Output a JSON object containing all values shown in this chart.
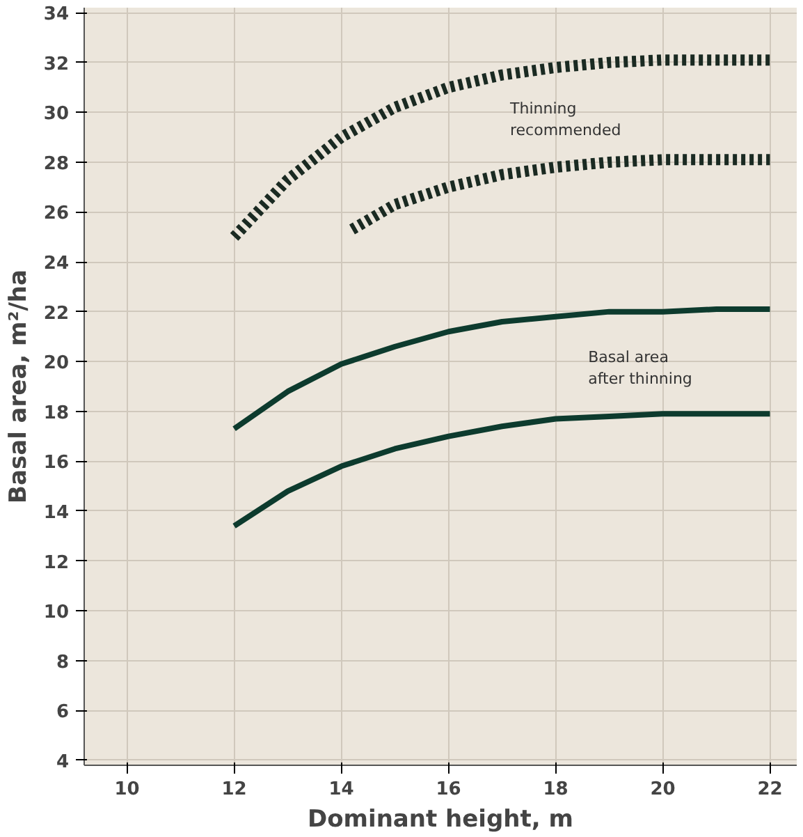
{
  "chart_data": {
    "type": "line",
    "xlabel": "Dominant height, m",
    "ylabel": "Basal area, m²/ha",
    "xlim": [
      9.2,
      22.5
    ],
    "ylim": [
      3.8,
      34.2
    ],
    "xticks": [
      10,
      12,
      14,
      16,
      18,
      20,
      22
    ],
    "yticks": [
      4,
      6,
      8,
      10,
      12,
      14,
      16,
      18,
      20,
      22,
      24,
      26,
      28,
      30,
      32,
      34
    ],
    "grid": true,
    "series": [
      {
        "color": "#1a2a22",
        "line_style": "dotted",
        "x": [
          12,
          13,
          14,
          15,
          16,
          17,
          18,
          19,
          20,
          21,
          22
        ],
        "values": [
          25.0,
          27.3,
          29.0,
          30.2,
          31.0,
          31.5,
          31.8,
          32.0,
          32.1,
          32.1,
          32.1
        ]
      },
      {
        "color": "#1a2a22",
        "line_style": "dotted",
        "x": [
          14.2,
          15,
          16,
          17,
          18,
          19,
          20,
          21,
          22
        ],
        "values": [
          25.3,
          26.3,
          27.0,
          27.5,
          27.8,
          28.0,
          28.1,
          28.1,
          28.1
        ]
      },
      {
        "color": "#0d3b2e",
        "line_style": "solid",
        "x": [
          12,
          13,
          14,
          15,
          16,
          17,
          18,
          19,
          20,
          21,
          22
        ],
        "values": [
          17.3,
          18.8,
          19.9,
          20.6,
          21.2,
          21.6,
          21.8,
          22.0,
          22.0,
          22.1,
          22.1
        ]
      },
      {
        "color": "#0d3b2e",
        "line_style": "solid",
        "x": [
          12,
          13,
          14,
          15,
          16,
          17,
          18,
          19,
          20,
          21,
          22
        ],
        "values": [
          13.4,
          14.8,
          15.8,
          16.5,
          17.0,
          17.4,
          17.7,
          17.8,
          17.9,
          17.9,
          17.9
        ]
      }
    ],
    "annotations": [
      "Thinning\nrecommended",
      "Basal area\nafter thinning"
    ]
  }
}
